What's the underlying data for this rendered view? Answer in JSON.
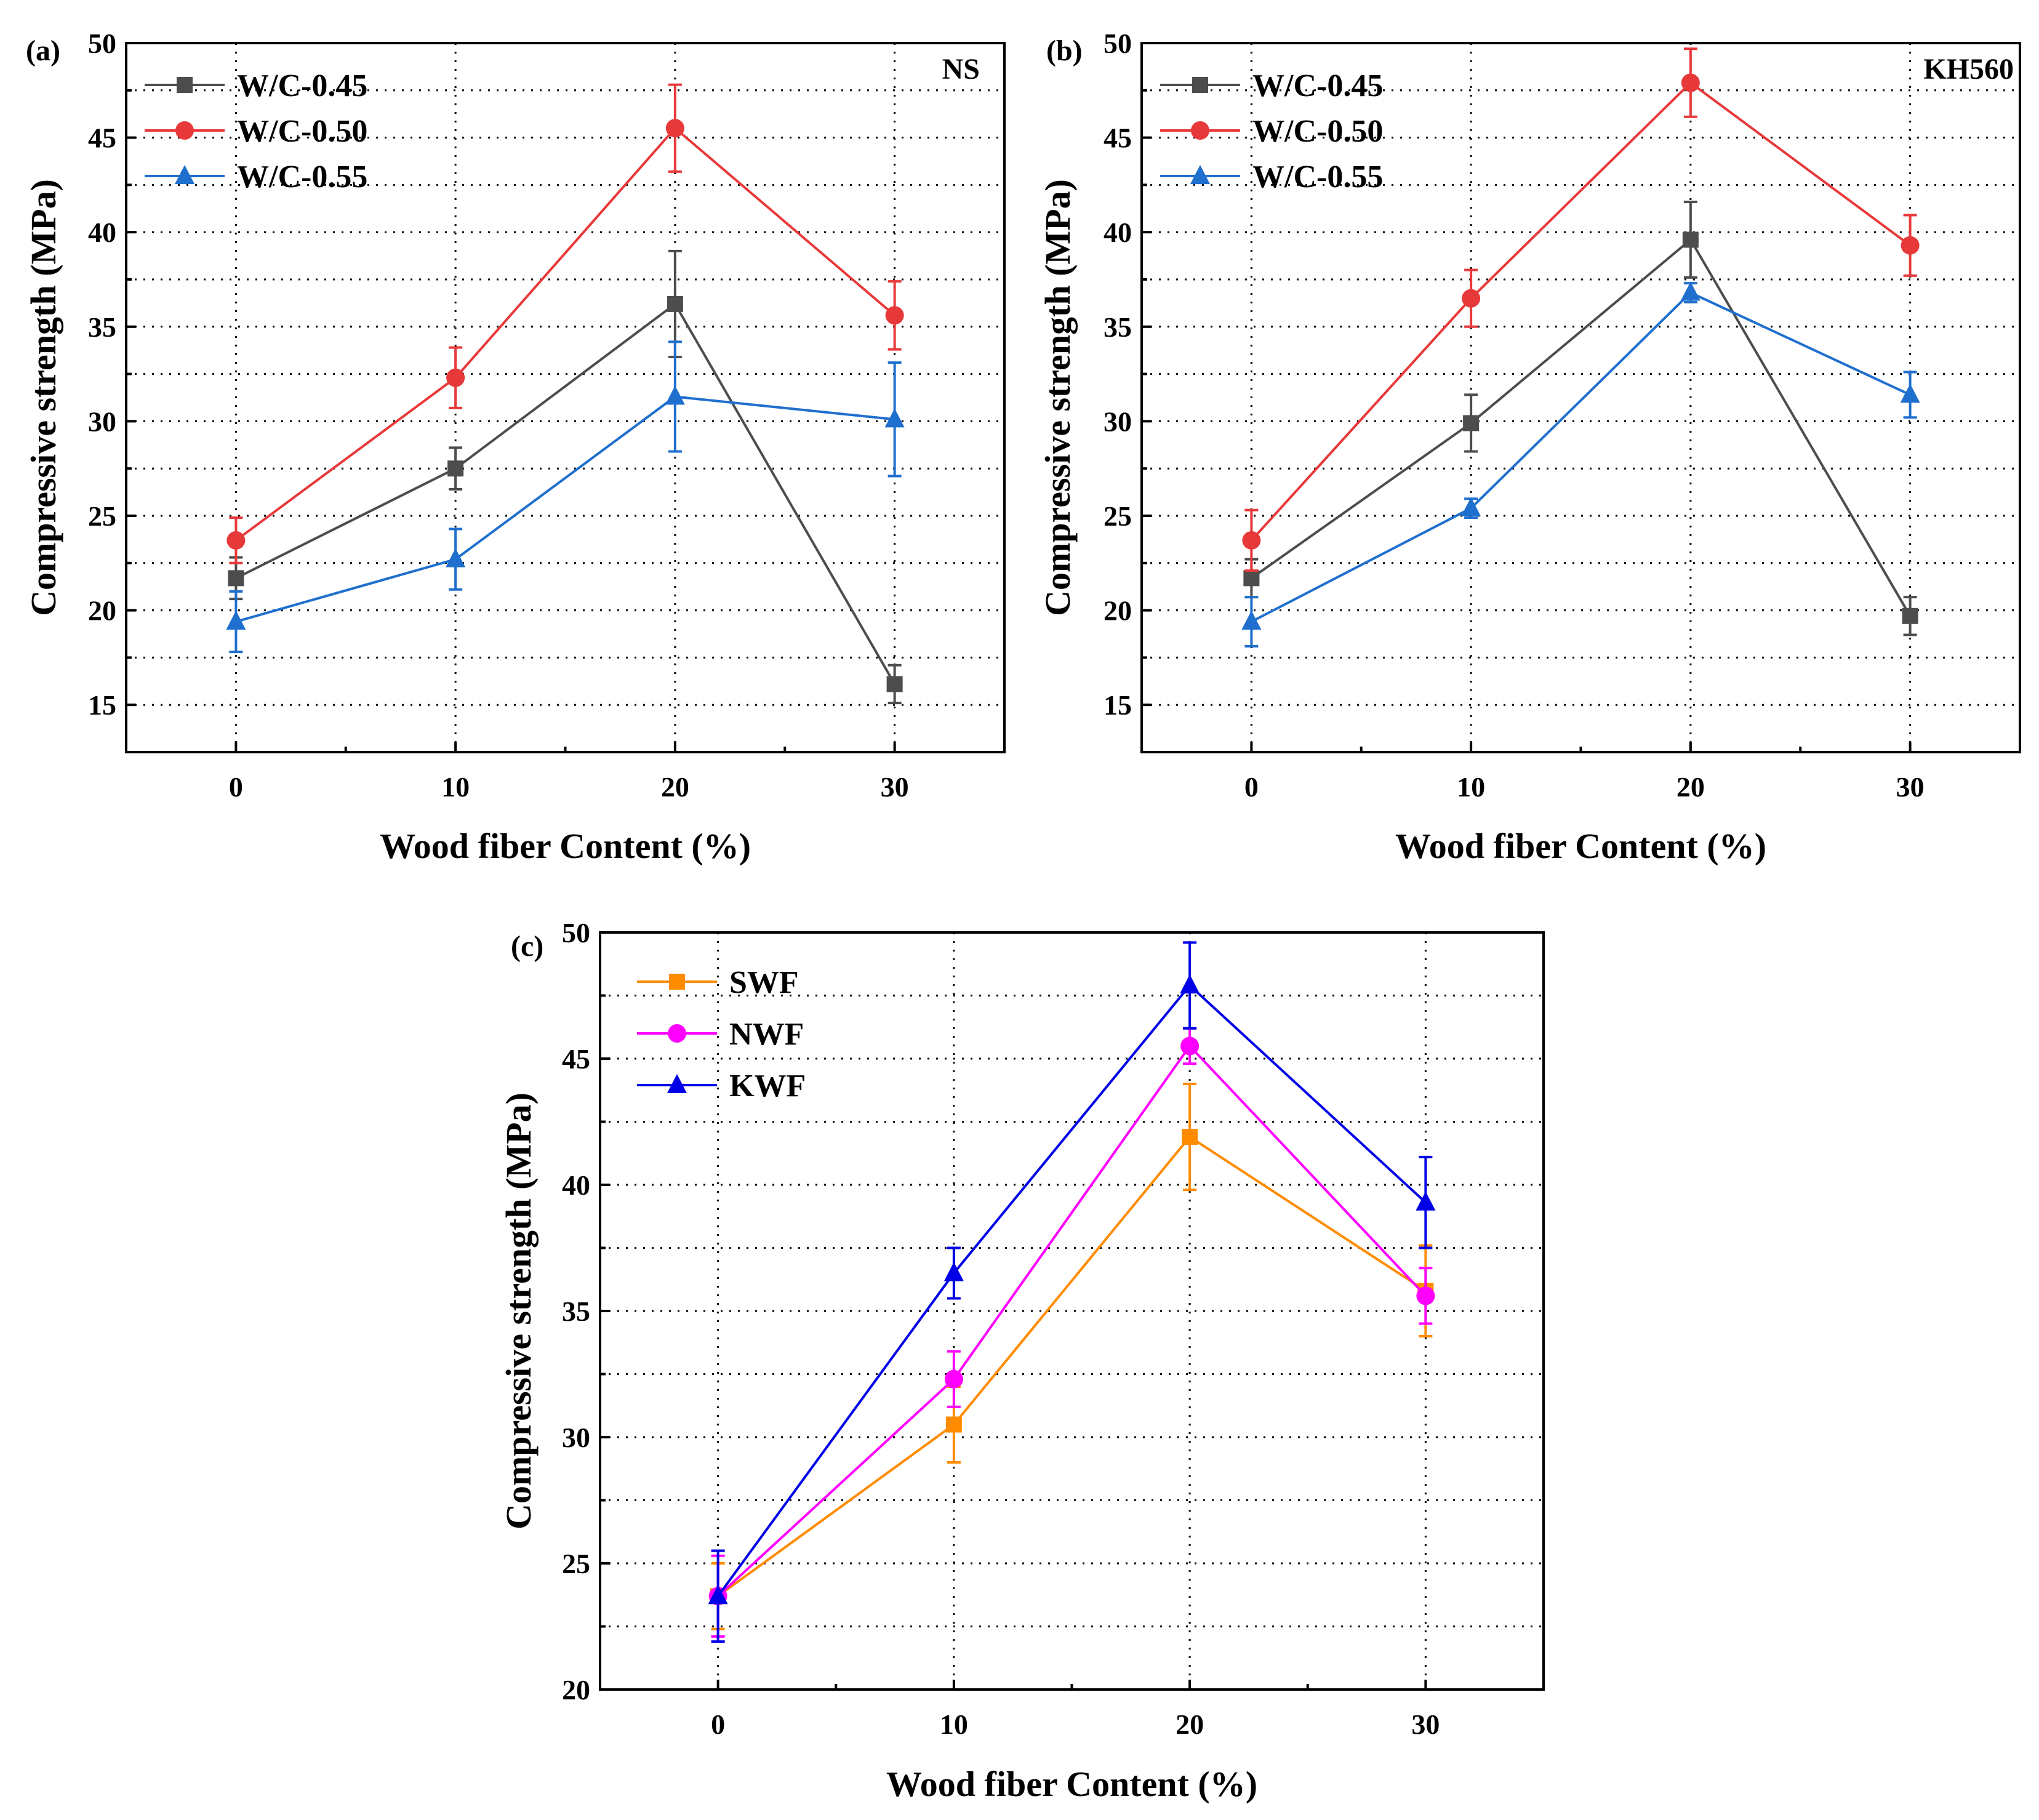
{
  "chart_data": [
    {
      "type": "line",
      "panel_label": "(a)",
      "corner_label": "NS",
      "xlabel": "Wood fiber Content (%)",
      "ylabel": "Compressive strength (MPa)",
      "x": [
        0,
        10,
        20,
        30
      ],
      "xticks": [
        "0",
        "10",
        "20",
        "30"
      ],
      "xlim": [
        -5,
        35
      ],
      "ylim": [
        12.5,
        50
      ],
      "yticks": [
        "15",
        "20",
        "25",
        "30",
        "35",
        "40",
        "45",
        "50"
      ],
      "grid": true,
      "legend_position": "top-left",
      "series": [
        {
          "name": "W/C-0.45",
          "color": "#4d4d4d",
          "marker": "square",
          "values": [
            21.7,
            27.5,
            36.2,
            16.1
          ],
          "errors": [
            1.1,
            1.1,
            2.8,
            1.0
          ]
        },
        {
          "name": "W/C-0.50",
          "color": "#e8393a",
          "marker": "circle",
          "values": [
            23.7,
            32.3,
            45.5,
            35.6
          ],
          "errors": [
            1.2,
            1.6,
            2.3,
            1.8
          ]
        },
        {
          "name": "W/C-0.55",
          "color": "#1f6fce",
          "marker": "triangle",
          "values": [
            19.4,
            22.7,
            31.3,
            30.1
          ],
          "errors": [
            1.6,
            1.6,
            2.9,
            3.0
          ]
        }
      ]
    },
    {
      "type": "line",
      "panel_label": "(b)",
      "corner_label": "KH560",
      "xlabel": "Wood fiber Content (%)",
      "ylabel": "Compressive strength (MPa)",
      "x": [
        0,
        10,
        20,
        30
      ],
      "xticks": [
        "0",
        "10",
        "20",
        "30"
      ],
      "xlim": [
        -5,
        35
      ],
      "ylim": [
        12.5,
        50
      ],
      "yticks": [
        "15",
        "20",
        "25",
        "30",
        "35",
        "40",
        "45",
        "50"
      ],
      "grid": true,
      "legend_position": "top-left",
      "series": [
        {
          "name": "W/C-0.45",
          "color": "#4d4d4d",
          "marker": "square",
          "values": [
            21.7,
            29.9,
            39.6,
            19.7
          ],
          "errors": [
            1.0,
            1.5,
            2.0,
            1.0
          ]
        },
        {
          "name": "W/C-0.50",
          "color": "#e8393a",
          "marker": "circle",
          "values": [
            23.7,
            36.5,
            47.9,
            39.3
          ],
          "errors": [
            1.6,
            1.5,
            1.8,
            1.6
          ]
        },
        {
          "name": "W/C-0.55",
          "color": "#1f6fce",
          "marker": "triangle",
          "values": [
            19.4,
            25.4,
            36.8,
            31.4
          ],
          "errors": [
            1.3,
            0.5,
            0.5,
            1.2
          ]
        }
      ]
    },
    {
      "type": "line",
      "panel_label": "(c)",
      "corner_label": "",
      "xlabel": "Wood fiber Content (%)",
      "ylabel": "Compressive strength (MPa)",
      "x": [
        0,
        10,
        20,
        30
      ],
      "xticks": [
        "0",
        "10",
        "20",
        "30"
      ],
      "xlim": [
        -5,
        35
      ],
      "ylim": [
        20,
        50
      ],
      "yticks": [
        "20",
        "25",
        "30",
        "35",
        "40",
        "45",
        "50"
      ],
      "grid": true,
      "legend_position": "top-left",
      "series": [
        {
          "name": "SWF",
          "color": "#ff8c00",
          "marker": "square",
          "values": [
            23.7,
            30.5,
            41.9,
            35.8
          ],
          "errors": [
            1.3,
            1.5,
            2.1,
            1.8
          ]
        },
        {
          "name": "NWF",
          "color": "#ff00ff",
          "marker": "circle",
          "values": [
            23.7,
            32.3,
            45.5,
            35.6
          ],
          "errors": [
            1.6,
            1.1,
            0.7,
            1.1
          ]
        },
        {
          "name": "KWF",
          "color": "#0000e6",
          "marker": "triangle",
          "values": [
            23.7,
            36.5,
            47.9,
            39.3
          ],
          "errors": [
            1.8,
            1.0,
            1.7,
            1.8
          ]
        }
      ]
    }
  ]
}
